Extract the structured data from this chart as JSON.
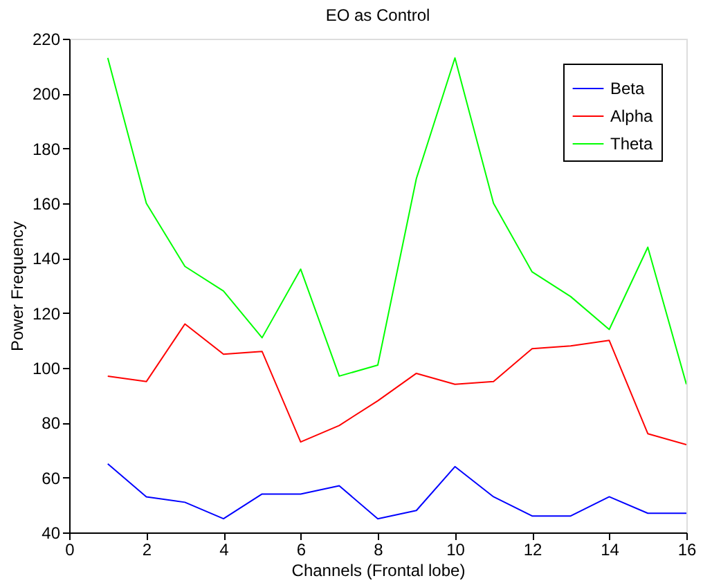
{
  "chart_data": {
    "type": "line",
    "title": "EO as Control",
    "xlabel": "Channels (Frontal lobe)",
    "ylabel": "Power Frequency",
    "x": [
      1,
      2,
      3,
      4,
      5,
      6,
      7,
      8,
      9,
      10,
      11,
      12,
      13,
      14,
      15,
      16
    ],
    "series": [
      {
        "name": "Beta",
        "color": "#0000ff",
        "values": [
          65,
          53,
          51,
          45,
          54,
          54,
          57,
          45,
          48,
          64,
          53,
          46,
          46,
          53,
          47,
          47
        ]
      },
      {
        "name": "Alpha",
        "color": "#ff0000",
        "values": [
          97,
          95,
          116,
          105,
          106,
          73,
          79,
          88,
          98,
          94,
          95,
          107,
          108,
          110,
          76,
          72
        ]
      },
      {
        "name": "Theta",
        "color": "#00ff00",
        "values": [
          213,
          160,
          137,
          128,
          111,
          136,
          97,
          101,
          169,
          213,
          160,
          135,
          126,
          114,
          144,
          94
        ]
      }
    ],
    "xlim": [
      0,
      16
    ],
    "xticks": [
      0,
      2,
      4,
      6,
      8,
      10,
      12,
      14,
      16
    ],
    "ylim": [
      40,
      220
    ],
    "yticks": [
      40,
      60,
      80,
      100,
      120,
      140,
      160,
      180,
      200,
      220
    ],
    "grid": false,
    "legend": "top right",
    "marker": "none",
    "line_style": "solid"
  }
}
